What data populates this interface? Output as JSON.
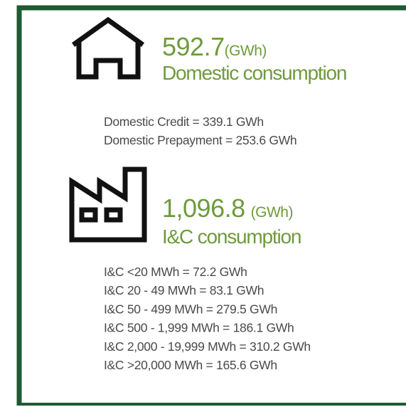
{
  "domestic": {
    "value": "592.7",
    "unit": "(GWh)",
    "label": "Domestic consumption",
    "details": [
      "Domestic Credit = 339.1 GWh",
      "Domestic Prepayment = 253.6 GWh"
    ]
  },
  "ic": {
    "value": "1,096.8",
    "unit": "(GWh)",
    "label": "I&C consumption",
    "details": [
      "I&C <20 MWh = 72.2 GWh",
      "I&C 20 - 49 MWh = 83.1 GWh",
      "I&C 50 - 499 MWh = 279.5 GWh",
      "I&C 500 - 1,999 MWh = 186.1 GWh",
      "I&C 2,000 - 19,999 MWh = 310.2 GWh",
      "I&C >20,000 MWh = 165.6 GWh"
    ]
  }
}
